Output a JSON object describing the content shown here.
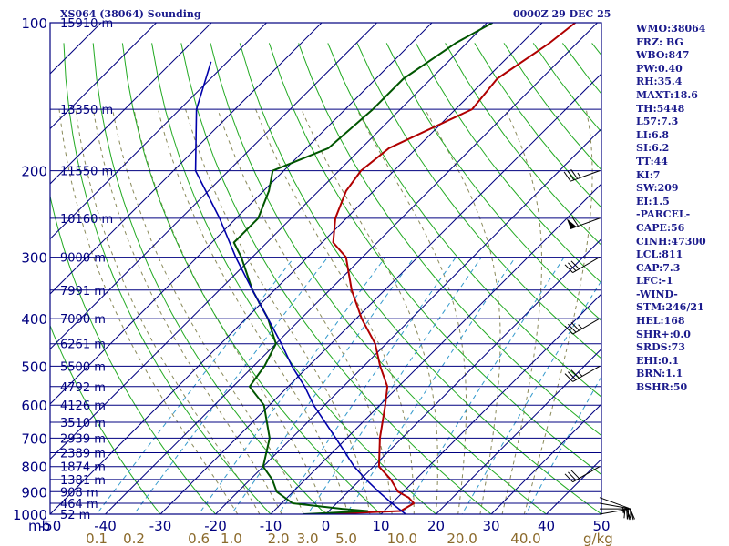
{
  "header": {
    "station": "XS064 (38064) Sounding",
    "valid_time": "0000Z 29 DEC 25"
  },
  "indices": [
    "WMO:38064",
    "FRZ: BG",
    "WBO:847",
    "PW:0.40",
    "RH:35.4",
    "MAXT:18.6",
    "TH:5448",
    "L57:7.3",
    "LI:6.8",
    "SI:6.2",
    "TT:44",
    "KI:7",
    "SW:209",
    "EI:1.5",
    "-PARCEL-",
    "CAPE:56",
    "CINH:47300",
    "LCL:811",
    "CAP:7.3",
    "LFC:-1",
    "-WIND-",
    "STM:246/21",
    "HEL:168",
    "SHR+:0.0",
    "SRDS:73",
    "EHI:0.1",
    "BRN:1.1",
    "BSHR:50"
  ],
  "colors": {
    "frame": "#000080",
    "isobar": "#000080",
    "isotherm": "#000080",
    "dry_adiabat": "#22aa22",
    "moist_adiabat": "#8a8a5a",
    "mixing_ratio": "#3399cc",
    "temperature": "#b00000",
    "dewpoint": "#005500",
    "parcel": "#0000aa",
    "wind": "#000000",
    "axis_text": "#000080",
    "mr_text": "#8b6a2b"
  },
  "chart_data": {
    "type": "skew-t",
    "x_unit": "°C",
    "y_unit": "mb",
    "pressure_range": [
      1000,
      100
    ],
    "temperature_range_at_1000mb": [
      -50,
      50
    ],
    "pressure_ticks": [
      100,
      200,
      300,
      400,
      500,
      600,
      700,
      800,
      900,
      1000
    ],
    "pressure_tick_labels": [
      "100",
      "200",
      "300",
      "400",
      "500",
      "600",
      "700",
      "800",
      "900",
      "1000"
    ],
    "temperature_ticks": [
      -50,
      -40,
      -30,
      -20,
      -10,
      0,
      10,
      20,
      30,
      40,
      50
    ],
    "temperature_tick_labels": [
      "-50",
      "-40",
      "-30",
      "-20",
      "-10",
      "0",
      "10",
      "20",
      "30",
      "40",
      "50"
    ],
    "axis_unit_label": "mb",
    "mixing_ratio_labels": [
      "0.1",
      "0.2",
      "0.6",
      "1.0",
      "2.0",
      "3.0",
      "5.0",
      "10.0",
      "20.0",
      "40.0"
    ],
    "mixing_ratio_unit": "g/kg",
    "height_levels": [
      {
        "p": 100,
        "label": "15910 m"
      },
      {
        "p": 150,
        "label": "13350 m"
      },
      {
        "p": 200,
        "label": "11550 m"
      },
      {
        "p": 250,
        "label": "10160 m"
      },
      {
        "p": 300,
        "label": "9000 m"
      },
      {
        "p": 350,
        "label": "7991 m"
      },
      {
        "p": 400,
        "label": "7090 m"
      },
      {
        "p": 450,
        "label": "6261 m"
      },
      {
        "p": 500,
        "label": "5500 m"
      },
      {
        "p": 550,
        "label": "4792 m"
      },
      {
        "p": 600,
        "label": "4126 m"
      },
      {
        "p": 650,
        "label": "3510 m"
      },
      {
        "p": 700,
        "label": "2939 m"
      },
      {
        "p": 750,
        "label": "2389 m"
      },
      {
        "p": 800,
        "label": "1874 m"
      },
      {
        "p": 850,
        "label": "1381 m"
      },
      {
        "p": 900,
        "label": "908 m"
      },
      {
        "p": 950,
        "label": "464 m"
      },
      {
        "p": 1000,
        "label": "52 m"
      }
    ],
    "series": [
      {
        "id": "temperature",
        "points": [
          [
            1000,
            -1
          ],
          [
            985,
            13
          ],
          [
            950,
            14
          ],
          [
            925,
            12
          ],
          [
            900,
            9
          ],
          [
            850,
            5.5
          ],
          [
            800,
            1
          ],
          [
            700,
            -4
          ],
          [
            600,
            -9
          ],
          [
            550,
            -12
          ],
          [
            500,
            -17
          ],
          [
            450,
            -22
          ],
          [
            400,
            -29
          ],
          [
            350,
            -36
          ],
          [
            300,
            -43
          ],
          [
            280,
            -48
          ],
          [
            250,
            -52
          ],
          [
            220,
            -55
          ],
          [
            200,
            -56
          ],
          [
            180,
            -55
          ],
          [
            150,
            -47
          ],
          [
            130,
            -48
          ],
          [
            110,
            -45
          ],
          [
            100,
            -44
          ]
        ]
      },
      {
        "id": "dewpoint",
        "points": [
          [
            1000,
            -4
          ],
          [
            985,
            7
          ],
          [
            975,
            2
          ],
          [
            950,
            -8
          ],
          [
            900,
            -13
          ],
          [
            850,
            -16
          ],
          [
            800,
            -20
          ],
          [
            700,
            -24
          ],
          [
            600,
            -31
          ],
          [
            550,
            -37
          ],
          [
            500,
            -38
          ],
          [
            450,
            -40
          ],
          [
            400,
            -46
          ],
          [
            350,
            -54
          ],
          [
            300,
            -62
          ],
          [
            280,
            -66
          ],
          [
            250,
            -66
          ],
          [
            220,
            -69
          ],
          [
            200,
            -72
          ],
          [
            180,
            -66
          ],
          [
            150,
            -65
          ],
          [
            130,
            -65
          ],
          [
            110,
            -62
          ],
          [
            100,
            -59
          ]
        ]
      },
      {
        "id": "parcel",
        "points": [
          [
            1000,
            14.5
          ],
          [
            950,
            10
          ],
          [
            900,
            5.5
          ],
          [
            850,
            1
          ],
          [
            800,
            -3.5
          ],
          [
            700,
            -12
          ],
          [
            600,
            -22
          ],
          [
            550,
            -27
          ],
          [
            500,
            -33
          ],
          [
            450,
            -39
          ],
          [
            400,
            -46
          ],
          [
            350,
            -54
          ],
          [
            300,
            -63
          ],
          [
            250,
            -73
          ],
          [
            200,
            -86
          ],
          [
            150,
            -97
          ],
          [
            120,
            -103
          ]
        ]
      }
    ],
    "wind_barbs": [
      {
        "p": 1000,
        "dir": 80,
        "spd": 20
      },
      {
        "p": 975,
        "dir": 90,
        "spd": 25
      },
      {
        "p": 950,
        "dir": 100,
        "spd": 25
      },
      {
        "p": 925,
        "dir": 110,
        "spd": 20
      },
      {
        "p": 800,
        "dir": 240,
        "spd": 30
      },
      {
        "p": 500,
        "dir": 240,
        "spd": 35
      },
      {
        "p": 400,
        "dir": 240,
        "spd": 35
      },
      {
        "p": 300,
        "dir": 240,
        "spd": 30
      },
      {
        "p": 250,
        "dir": 250,
        "spd": 60
      },
      {
        "p": 200,
        "dir": 250,
        "spd": 35
      }
    ]
  }
}
